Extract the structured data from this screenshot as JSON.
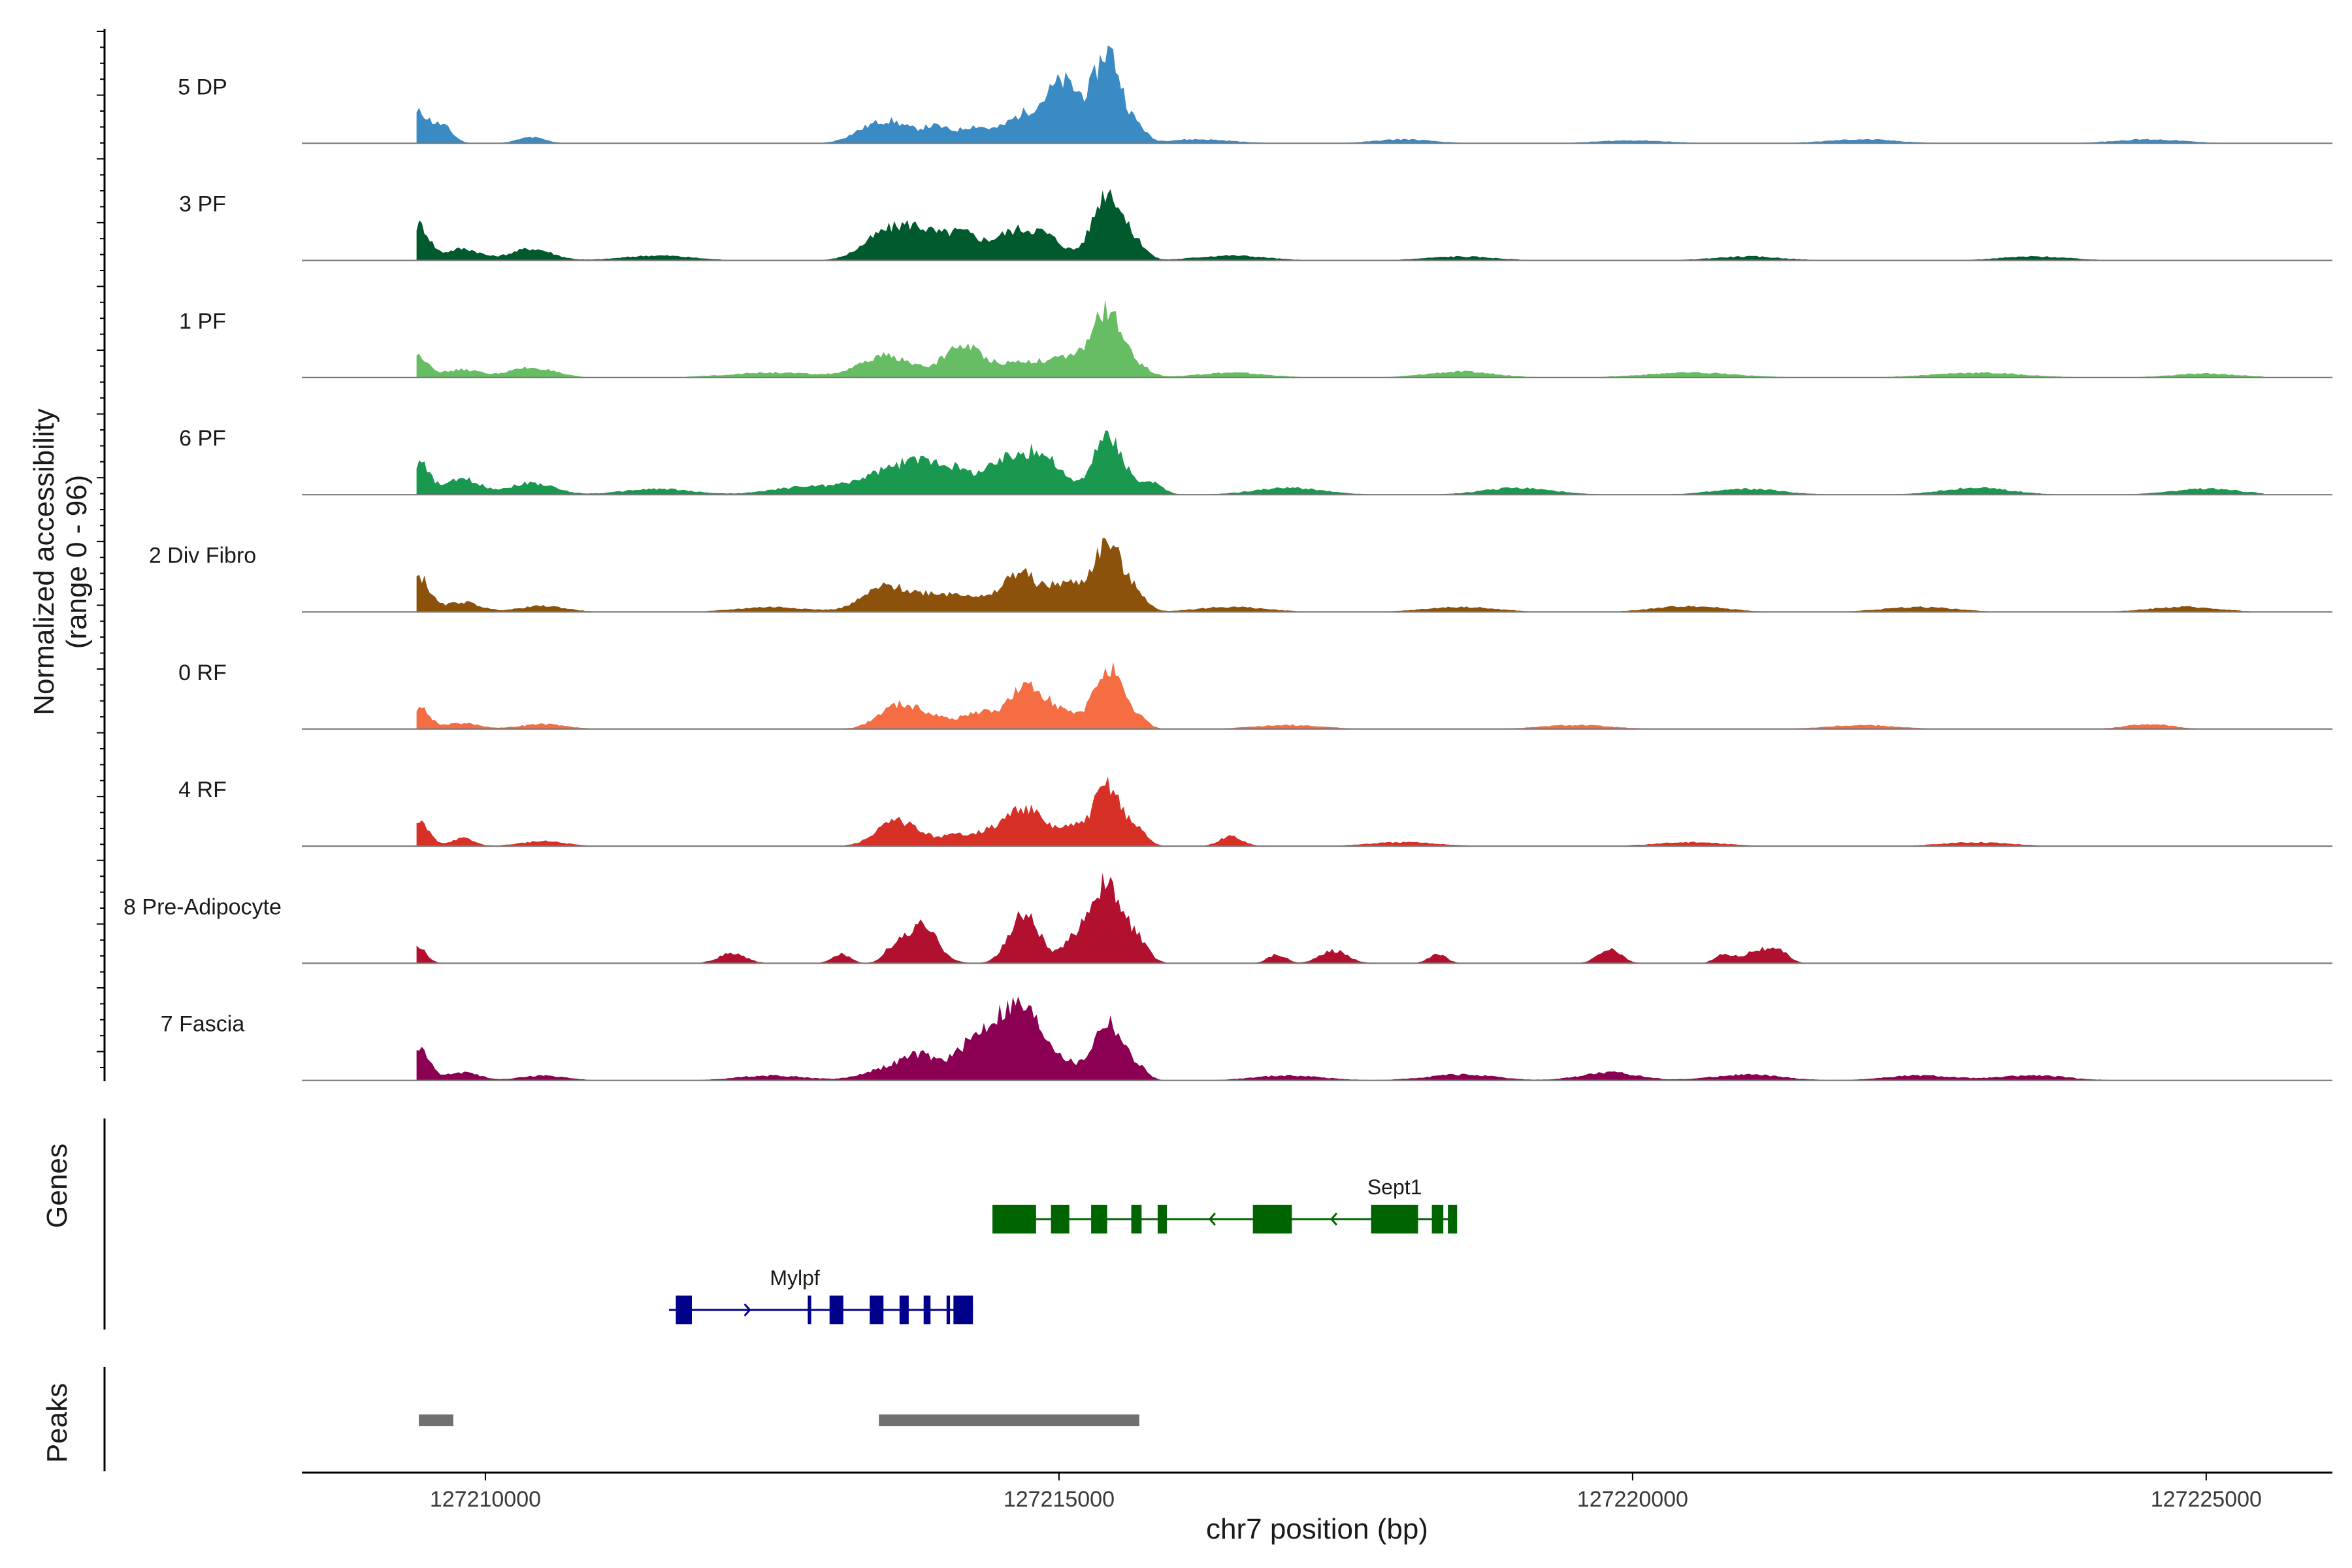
{
  "chart_data": {
    "type": "area",
    "subtype": "genome-track",
    "xlabel": "chr7 position (bp)",
    "ylabel": "Normalized accessibility\n(range 0 - 96)",
    "ylabel_line1": "Normalized accessibility",
    "ylabel_line2": "(range 0 - 96)",
    "y_range": [
      0,
      96
    ],
    "chromosome": "chr7",
    "xlim": [
      127208400,
      127226100
    ],
    "xticks": [
      127210000,
      127215000,
      127220000,
      127225000
    ],
    "xtick_labels": [
      "127210000",
      "127215000",
      "127220000",
      "127225000"
    ],
    "tracks": [
      {
        "name": "5 DP",
        "color": "#3a8ac4",
        "peaks": [
          [
            127209420,
            0.3,
            80
          ],
          [
            127209620,
            0.18,
            90
          ],
          [
            127210400,
            0.06,
            120
          ],
          [
            127213300,
            0.1,
            150
          ],
          [
            127213550,
            0.2,
            160
          ],
          [
            127213920,
            0.16,
            120
          ],
          [
            127214250,
            0.16,
            130
          ],
          [
            127214700,
            0.28,
            180
          ],
          [
            127215050,
            0.58,
            150
          ],
          [
            127215430,
            0.92,
            120
          ],
          [
            127215700,
            0.12,
            70
          ],
          [
            127216200,
            0.04,
            300
          ],
          [
            127218000,
            0.04,
            250
          ],
          [
            127220000,
            0.03,
            300
          ],
          [
            127222000,
            0.04,
            300
          ],
          [
            127224500,
            0.04,
            300
          ]
        ]
      },
      {
        "name": "3 PF",
        "color": "#005a2e",
        "peaks": [
          [
            127209420,
            0.36,
            90
          ],
          [
            127209800,
            0.12,
            150
          ],
          [
            127210400,
            0.12,
            180
          ],
          [
            127211500,
            0.05,
            300
          ],
          [
            127213500,
            0.28,
            200
          ],
          [
            127213800,
            0.24,
            160
          ],
          [
            127214150,
            0.26,
            150
          ],
          [
            127214600,
            0.28,
            180
          ],
          [
            127214900,
            0.2,
            150
          ],
          [
            127215430,
            0.72,
            130
          ],
          [
            127215700,
            0.12,
            80
          ],
          [
            127216500,
            0.05,
            300
          ],
          [
            127218500,
            0.04,
            300
          ],
          [
            127221000,
            0.04,
            300
          ],
          [
            127223500,
            0.04,
            300
          ]
        ]
      },
      {
        "name": "1 PF",
        "color": "#67bd63",
        "peaks": [
          [
            127209420,
            0.22,
            90
          ],
          [
            127209800,
            0.08,
            150
          ],
          [
            127210400,
            0.1,
            200
          ],
          [
            127212500,
            0.05,
            400
          ],
          [
            127213500,
            0.22,
            220
          ],
          [
            127214150,
            0.3,
            160
          ],
          [
            127214700,
            0.16,
            300
          ],
          [
            127215200,
            0.16,
            200
          ],
          [
            127215430,
            0.6,
            120
          ],
          [
            127215700,
            0.1,
            100
          ],
          [
            127216500,
            0.05,
            300
          ],
          [
            127218500,
            0.06,
            300
          ],
          [
            127220500,
            0.05,
            400
          ],
          [
            127223000,
            0.05,
            400
          ],
          [
            127225000,
            0.04,
            300
          ]
        ]
      },
      {
        "name": "6 PF",
        "color": "#1a9850",
        "peaks": [
          [
            127209420,
            0.32,
            90
          ],
          [
            127209800,
            0.16,
            150
          ],
          [
            127210400,
            0.12,
            200
          ],
          [
            127211500,
            0.06,
            300
          ],
          [
            127212800,
            0.08,
            300
          ],
          [
            127213600,
            0.25,
            300
          ],
          [
            127214000,
            0.22,
            250
          ],
          [
            127214600,
            0.36,
            200
          ],
          [
            127214900,
            0.28,
            150
          ],
          [
            127215430,
            0.6,
            130
          ],
          [
            127215800,
            0.12,
            100
          ],
          [
            127217000,
            0.07,
            300
          ],
          [
            127219000,
            0.07,
            300
          ],
          [
            127221000,
            0.06,
            300
          ],
          [
            127223000,
            0.07,
            300
          ],
          [
            127225000,
            0.06,
            300
          ]
        ]
      },
      {
        "name": "2 Div Fibro",
        "color": "#8c510a",
        "peaks": [
          [
            127209420,
            0.36,
            90
          ],
          [
            127209800,
            0.1,
            150
          ],
          [
            127210500,
            0.06,
            200
          ],
          [
            127212500,
            0.05,
            300
          ],
          [
            127213500,
            0.26,
            200
          ],
          [
            127213900,
            0.14,
            150
          ],
          [
            127214200,
            0.16,
            150
          ],
          [
            127214650,
            0.4,
            150
          ],
          [
            127215050,
            0.28,
            150
          ],
          [
            127215430,
            0.7,
            130
          ],
          [
            127215700,
            0.14,
            80
          ],
          [
            127216500,
            0.05,
            300
          ],
          [
            127218500,
            0.05,
            300
          ],
          [
            127220500,
            0.06,
            300
          ],
          [
            127222500,
            0.05,
            300
          ],
          [
            127224800,
            0.05,
            300
          ]
        ]
      },
      {
        "name": "0 RF",
        "color": "#f46d43",
        "peaks": [
          [
            127209420,
            0.22,
            90
          ],
          [
            127209800,
            0.06,
            150
          ],
          [
            127210500,
            0.05,
            200
          ],
          [
            127213600,
            0.24,
            170
          ],
          [
            127213900,
            0.1,
            150
          ],
          [
            127214300,
            0.16,
            150
          ],
          [
            127214700,
            0.4,
            150
          ],
          [
            127215000,
            0.18,
            150
          ],
          [
            127215430,
            0.62,
            120
          ],
          [
            127215700,
            0.1,
            80
          ],
          [
            127217000,
            0.04,
            300
          ],
          [
            127219500,
            0.04,
            300
          ],
          [
            127222000,
            0.04,
            300
          ],
          [
            127224500,
            0.05,
            200
          ]
        ]
      },
      {
        "name": "4 RF",
        "color": "#d73027",
        "peaks": [
          [
            127209420,
            0.24,
            90
          ],
          [
            127209800,
            0.08,
            100
          ],
          [
            127210500,
            0.05,
            200
          ],
          [
            127213600,
            0.26,
            180
          ],
          [
            127214100,
            0.1,
            150
          ],
          [
            127214400,
            0.12,
            150
          ],
          [
            127214700,
            0.38,
            150
          ],
          [
            127215100,
            0.18,
            150
          ],
          [
            127215430,
            0.62,
            120
          ],
          [
            127215700,
            0.14,
            80
          ],
          [
            127216500,
            0.1,
            100
          ],
          [
            127218000,
            0.04,
            300
          ],
          [
            127220500,
            0.04,
            300
          ],
          [
            127223000,
            0.04,
            300
          ]
        ]
      },
      {
        "name": "8 Pre-Adipocyte",
        "color": "#b2102f",
        "peaks": [
          [
            127209420,
            0.16,
            70
          ],
          [
            127212150,
            0.1,
            120
          ],
          [
            127213100,
            0.1,
            80
          ],
          [
            127213550,
            0.12,
            80
          ],
          [
            127213800,
            0.38,
            140
          ],
          [
            127214700,
            0.5,
            130
          ],
          [
            127215100,
            0.12,
            90
          ],
          [
            127215400,
            0.8,
            160
          ],
          [
            127215700,
            0.14,
            90
          ],
          [
            127216900,
            0.09,
            80
          ],
          [
            127217400,
            0.13,
            120
          ],
          [
            127218300,
            0.09,
            80
          ],
          [
            127219800,
            0.14,
            100
          ],
          [
            127220800,
            0.09,
            80
          ],
          [
            127221100,
            0.14,
            120
          ],
          [
            127221300,
            0.09,
            80
          ]
        ]
      },
      {
        "name": "7 Fascia",
        "color": "#8b0052",
        "peaks": [
          [
            127209420,
            0.32,
            90
          ],
          [
            127209800,
            0.08,
            150
          ],
          [
            127210500,
            0.05,
            200
          ],
          [
            127212500,
            0.05,
            300
          ],
          [
            127213500,
            0.12,
            200
          ],
          [
            127213800,
            0.22,
            150
          ],
          [
            127214200,
            0.28,
            150
          ],
          [
            127214450,
            0.4,
            150
          ],
          [
            127214700,
            0.62,
            160
          ],
          [
            127215000,
            0.18,
            150
          ],
          [
            127215430,
            0.6,
            130
          ],
          [
            127215700,
            0.1,
            80
          ],
          [
            127217000,
            0.05,
            300
          ],
          [
            127218500,
            0.06,
            300
          ],
          [
            127219800,
            0.08,
            250
          ],
          [
            127221000,
            0.06,
            300
          ],
          [
            127222500,
            0.05,
            300
          ],
          [
            127223500,
            0.05,
            300
          ]
        ]
      }
    ],
    "genes": [
      {
        "name": "Sept1",
        "color": "#006400",
        "strand": "-",
        "start": 127214420,
        "end": 127218470,
        "exons": [
          [
            127214420,
            127214800
          ],
          [
            127214930,
            127215090
          ],
          [
            127215280,
            127215420
          ],
          [
            127215630,
            127215720
          ],
          [
            127215860,
            127215940
          ],
          [
            127216690,
            127217030
          ],
          [
            127217720,
            127218130
          ],
          [
            127218250,
            127218350
          ],
          [
            127218390,
            127218470
          ]
        ]
      },
      {
        "name": "Mylpf",
        "color": "#00008b",
        "strand": "+",
        "start": 127211600,
        "end": 127214250,
        "exons": [
          [
            127211660,
            127211800
          ],
          [
            127212810,
            127212840
          ],
          [
            127213000,
            127213120
          ],
          [
            127213350,
            127213470
          ],
          [
            127213610,
            127213690
          ],
          [
            127213820,
            127213880
          ],
          [
            127214020,
            127214050
          ],
          [
            127214080,
            127214250
          ]
        ]
      }
    ],
    "peaks_track": {
      "label": "Peaks",
      "color": "#707070",
      "regions": [
        [
          127209420,
          127209720
        ],
        [
          127213430,
          127215700
        ]
      ]
    },
    "genes_track_label": "Genes"
  }
}
